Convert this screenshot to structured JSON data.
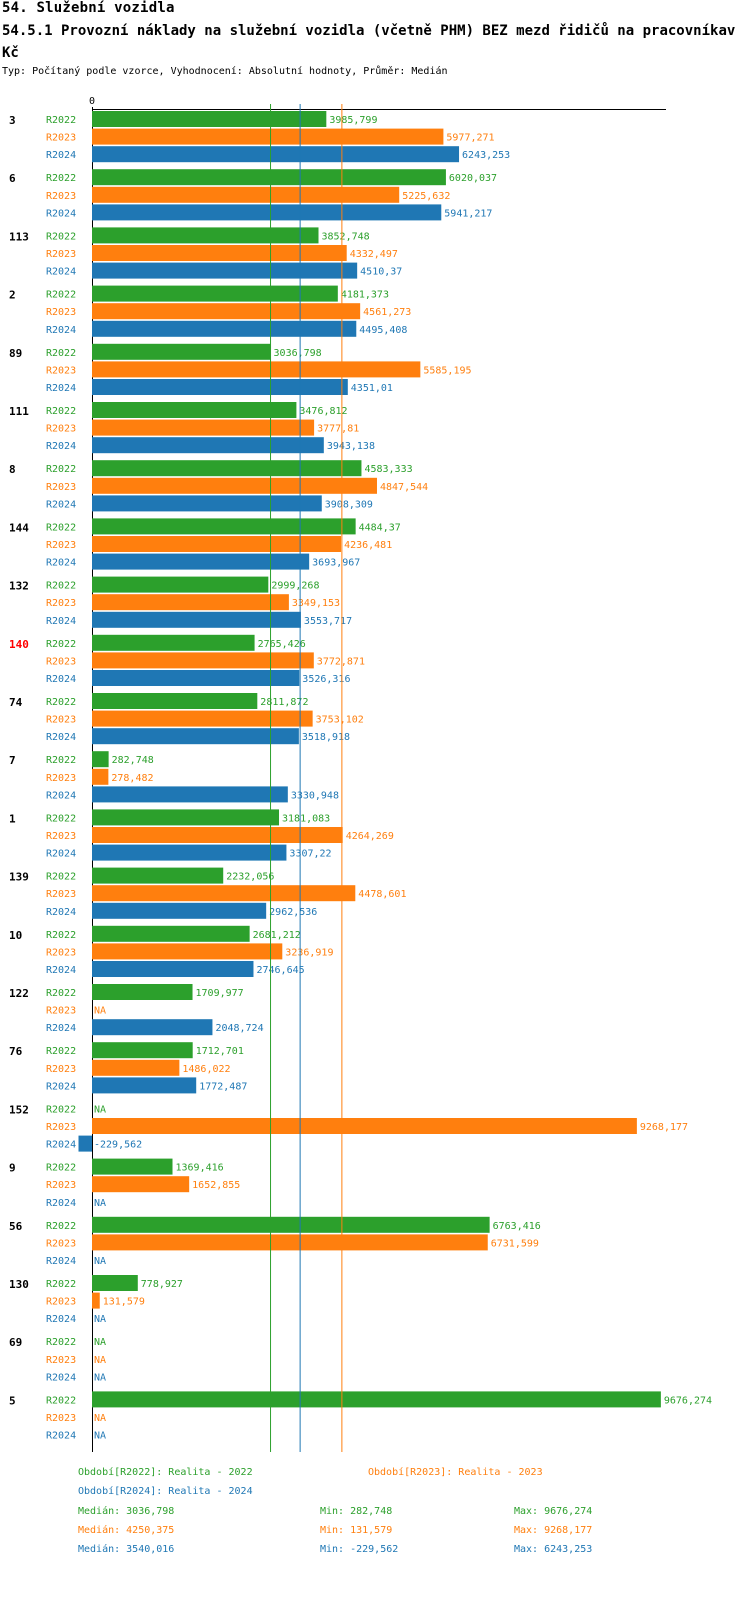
{
  "header": {
    "title": "54. Služební vozidla",
    "subtitle": "54.5.1 Provozní náklady na služební vozidla (včetně PHM) BEZ mezd řidičů na pracovníkav Kč",
    "meta": "Typ: Počítaný podle vzorce, Vyhodnocení: Absolutní hodnoty, Průměr: Medián"
  },
  "colors": {
    "R2022": "#2ca02c",
    "R2023": "#ff7f0e",
    "R2024": "#1f77b4",
    "highlight": "#ff0000"
  },
  "chart_data": {
    "type": "bar",
    "orientation": "horizontal",
    "axis_zero_label": "0",
    "series_names": [
      "R2022",
      "R2023",
      "R2024"
    ],
    "highlighted_category": "140",
    "categories": [
      "3",
      "6",
      "113",
      "2",
      "89",
      "111",
      "8",
      "144",
      "132",
      "140",
      "74",
      "7",
      "1",
      "139",
      "10",
      "122",
      "76",
      "152",
      "9",
      "56",
      "130",
      "69",
      "5"
    ],
    "series": [
      {
        "name": "R2022",
        "values": [
          3985.799,
          6020.037,
          3852.748,
          4181.373,
          3036.798,
          3476.812,
          4583.333,
          4484.37,
          2999.268,
          2765.426,
          2811.872,
          282.748,
          3181.083,
          2232.056,
          2681.212,
          1709.977,
          1712.701,
          null,
          1369.416,
          6763.416,
          778.927,
          null,
          9676.274
        ],
        "labels": [
          "3985,799",
          "6020,037",
          "3852,748",
          "4181,373",
          "3036,798",
          "3476,812",
          "4583,333",
          "4484,37",
          "2999,268",
          "2765,426",
          "2811,872",
          "282,748",
          "3181,083",
          "2232,056",
          "2681,212",
          "1709,977",
          "1712,701",
          "NA",
          "1369,416",
          "6763,416",
          "778,927",
          "NA",
          "9676,274"
        ]
      },
      {
        "name": "R2023",
        "values": [
          5977.271,
          5225.632,
          4332.497,
          4561.273,
          5585.195,
          3777.81,
          4847.544,
          4236.481,
          3349.153,
          3772.871,
          3753.102,
          278.482,
          4264.269,
          4478.601,
          3236.919,
          null,
          1486.022,
          9268.177,
          1652.855,
          6731.599,
          131.579,
          null,
          null
        ],
        "labels": [
          "5977,271",
          "5225,632",
          "4332,497",
          "4561,273",
          "5585,195",
          "3777,81",
          "4847,544",
          "4236,481",
          "3349,153",
          "3772,871",
          "3753,102",
          "278,482",
          "4264,269",
          "4478,601",
          "3236,919",
          "NA",
          "1486,022",
          "9268,177",
          "1652,855",
          "6731,599",
          "131,579",
          "NA",
          "NA"
        ]
      },
      {
        "name": "R2024",
        "values": [
          6243.253,
          5941.217,
          4510.37,
          4495.408,
          4351.01,
          3943.138,
          3908.309,
          3693.967,
          3553.717,
          3526.316,
          3518.918,
          3330.948,
          3307.22,
          2962.536,
          2746.645,
          2048.724,
          1772.487,
          -229.562,
          null,
          null,
          null,
          null,
          null
        ],
        "labels": [
          "6243,253",
          "5941,217",
          "4510,37",
          "4495,408",
          "4351,01",
          "3943,138",
          "3908,309",
          "3693,967",
          "3553,717",
          "3526,316",
          "3518,918",
          "3330,948",
          "3307,22",
          "2962,536",
          "2746,645",
          "2048,724",
          "1772,487",
          "-229,562",
          "NA",
          "NA",
          "NA",
          "NA",
          "NA"
        ]
      }
    ],
    "median_lines": {
      "R2022": 3036.798,
      "R2023": 4250.375,
      "R2024": 3540.016
    }
  },
  "legend": {
    "r2022": "Období[R2022]: Realita - 2022",
    "r2023": "Období[R2023]: Realita - 2023",
    "r2024": "Období[R2024]: Realita - 2024",
    "stats": [
      {
        "median": "Medián: 3036,798",
        "min": "Min: 282,748",
        "max": "Max: 9676,274"
      },
      {
        "median": "Medián: 4250,375",
        "min": "Min: 131,579",
        "max": "Max: 9268,177"
      },
      {
        "median": "Medián: 3540,016",
        "min": "Min: -229,562",
        "max": "Max: 6243,253"
      }
    ]
  }
}
